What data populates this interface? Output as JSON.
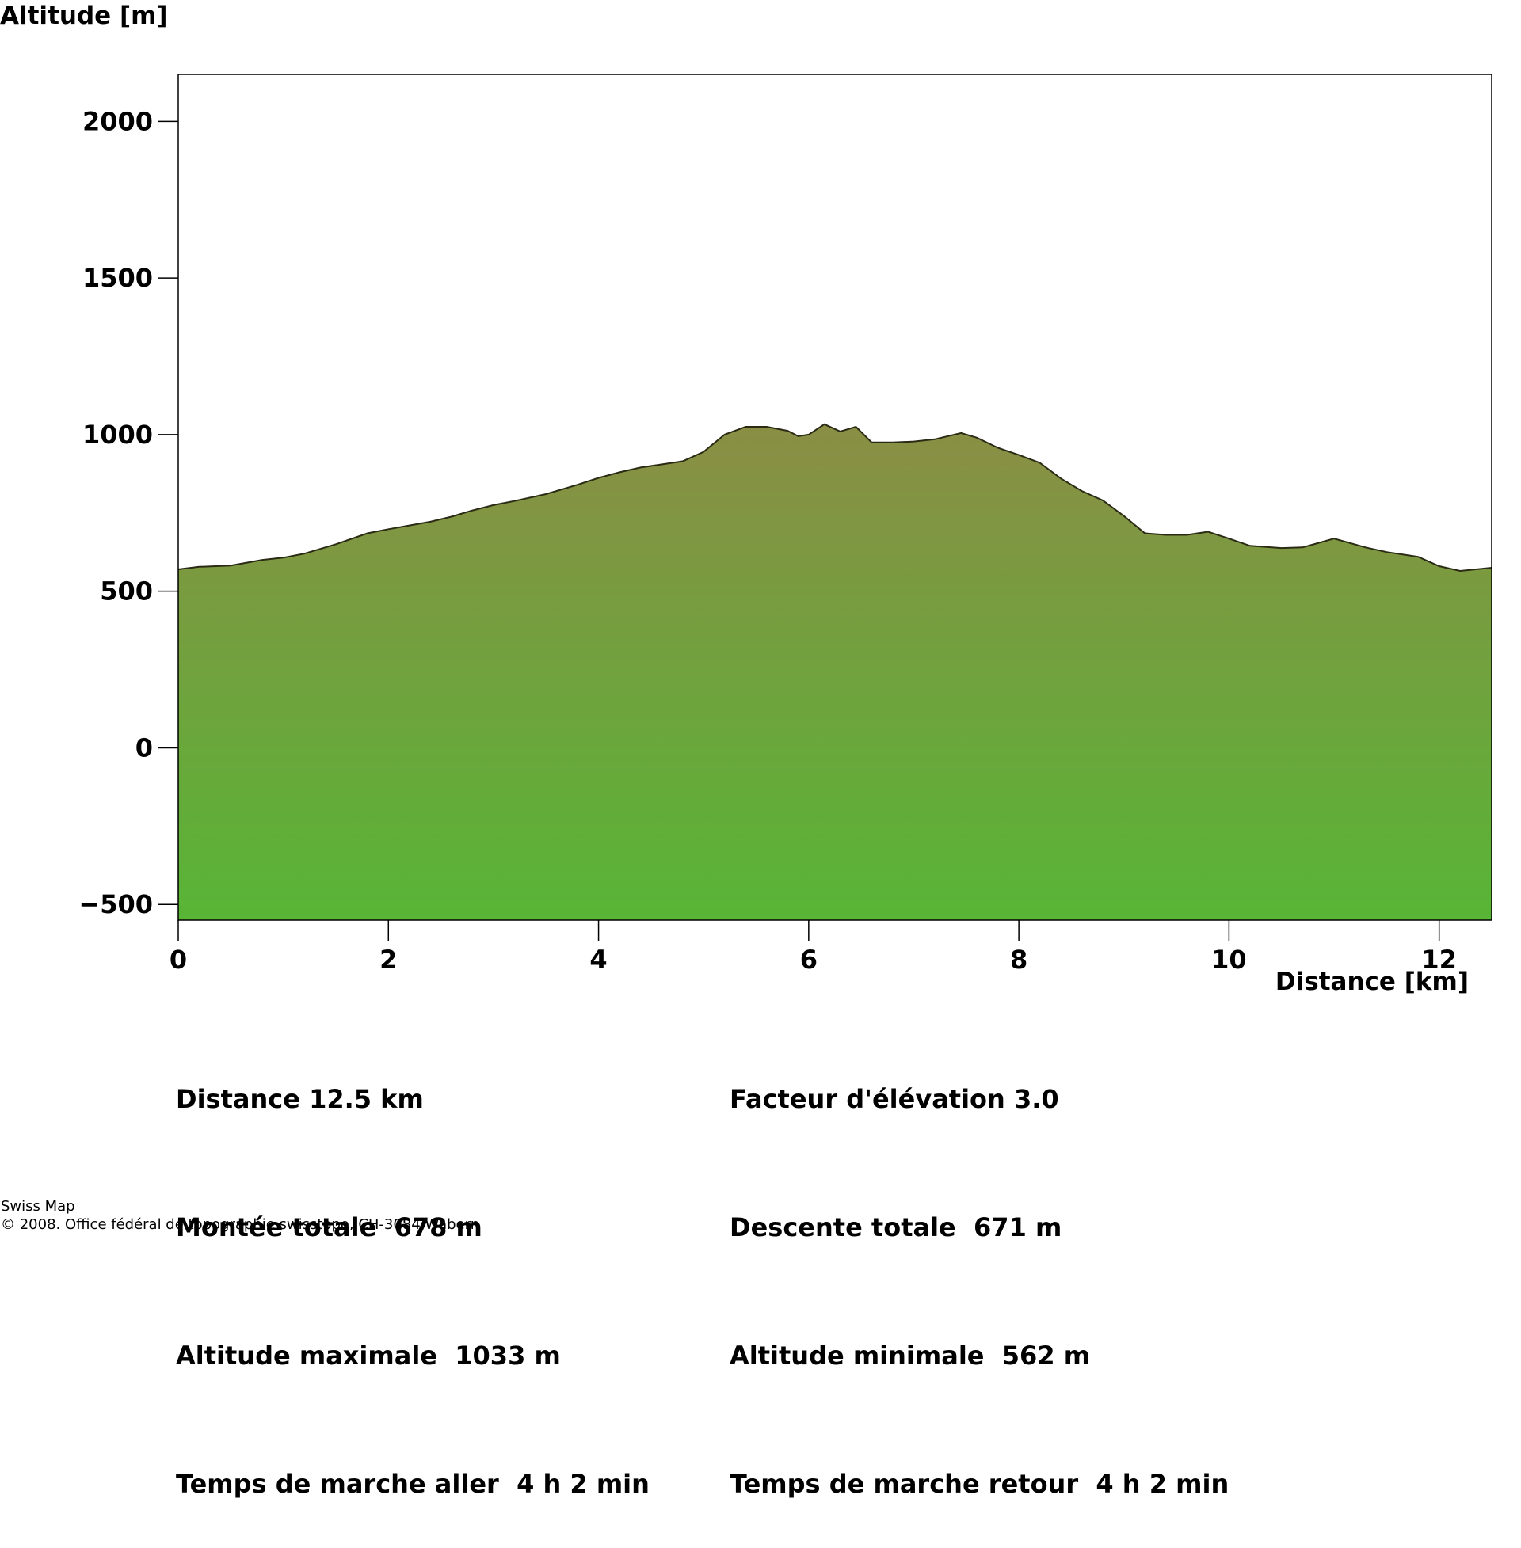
{
  "chart_data": {
    "type": "area",
    "ylabel": "Altitude [m]",
    "xlabel": "Distance [km]",
    "xlim": [
      0,
      12.5
    ],
    "ylim": [
      -550,
      2150
    ],
    "xticks": [
      0,
      2,
      4,
      6,
      8,
      10,
      12
    ],
    "yticks": [
      -500,
      0,
      500,
      1000,
      1500,
      2000
    ],
    "fill_gradient": [
      "#8a8e45",
      "#58b536"
    ],
    "line_color": "#2b2b15",
    "series": [
      {
        "x": [
          0,
          0.2,
          0.5,
          0.8,
          1.0,
          1.2,
          1.5,
          1.8,
          2.0,
          2.2,
          2.4,
          2.6,
          2.8,
          3.0,
          3.2,
          3.5,
          3.8,
          4.0,
          4.2,
          4.4,
          4.6,
          4.8,
          5.0,
          5.2,
          5.4,
          5.6,
          5.8,
          5.9,
          6.0,
          6.15,
          6.3,
          6.45,
          6.6,
          6.8,
          7.0,
          7.2,
          7.45,
          7.6,
          7.8,
          8.0,
          8.2,
          8.4,
          8.6,
          8.8,
          9.0,
          9.2,
          9.4,
          9.6,
          9.8,
          10.0,
          10.2,
          10.5,
          10.7,
          11.0,
          11.3,
          11.5,
          11.8,
          12.0,
          12.2,
          12.5
        ],
        "y": [
          570,
          578,
          582,
          600,
          607,
          620,
          650,
          685,
          698,
          710,
          722,
          738,
          758,
          775,
          788,
          810,
          840,
          862,
          880,
          895,
          905,
          915,
          945,
          1000,
          1025,
          1025,
          1012,
          995,
          1000,
          1033,
          1010,
          1025,
          975,
          975,
          978,
          985,
          1005,
          990,
          958,
          935,
          910,
          860,
          820,
          790,
          740,
          685,
          680,
          680,
          690,
          668,
          645,
          638,
          640,
          668,
          640,
          625,
          610,
          580,
          565,
          575
        ]
      }
    ],
    "stats_left": [
      "Distance 12.5 km",
      "Montée totale  678 m",
      "Altitude maximale  1033 m",
      "Temps de marche aller  4 h 2 min"
    ],
    "stats_right": [
      "Facteur d'élévation 3.0",
      "Descente totale  671 m",
      "Altitude minimale  562 m",
      "Temps de marche retour  4 h 2 min"
    ]
  },
  "footer": {
    "line1": "Swiss Map",
    "line2": "© 2008. Office fédéral de topographie swisstopo, CH-3084 Wabern"
  }
}
